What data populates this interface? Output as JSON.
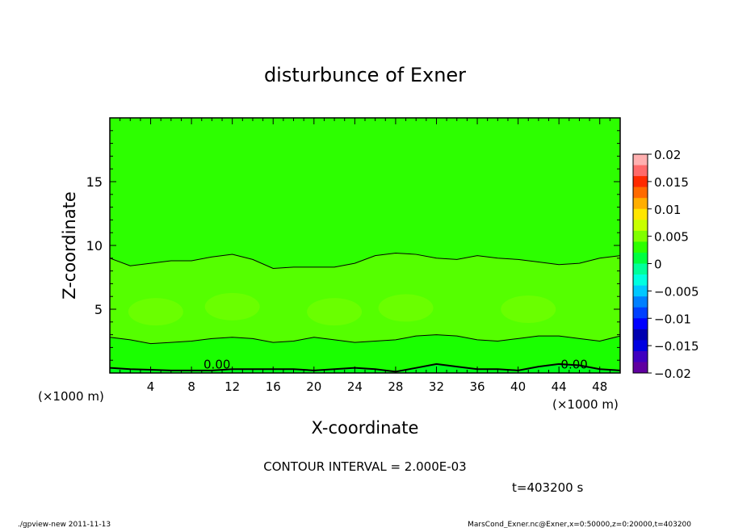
{
  "chart_data": {
    "type": "heatmap",
    "title": "disturbunce of Exner",
    "xlabel": "X-coordinate",
    "ylabel": "Z-coordinate",
    "x_unit_left": "(×1000 m)",
    "x_unit_right": "(×1000 m)",
    "xlim": [
      0,
      50
    ],
    "ylim": [
      0,
      20
    ],
    "xticks": [
      4,
      8,
      12,
      16,
      20,
      24,
      28,
      32,
      36,
      40,
      44,
      48
    ],
    "xtick_labels": [
      "4",
      "8",
      "12",
      "16",
      "20",
      "24",
      "28",
      "32",
      "36",
      "40",
      "44",
      "48"
    ],
    "yticks": [
      5,
      10,
      15
    ],
    "ytick_labels": [
      "5",
      "10",
      "15"
    ],
    "contour_interval_text": "CONTOUR INTERVAL = 2.000E-03",
    "time_text": "t=403200 s",
    "contour_labels": [
      {
        "text": "0.00",
        "x": 10.5,
        "z": 0.35
      },
      {
        "text": "0.00",
        "x": 45.5,
        "z": 0.35
      }
    ],
    "contours": [
      {
        "level": 0.0,
        "x": [
          0,
          2,
          4,
          6,
          8,
          10,
          12,
          14,
          16,
          18,
          20,
          22,
          24,
          26,
          28,
          30,
          32,
          34,
          36,
          38,
          40,
          42,
          44,
          46,
          48,
          50
        ],
        "z": [
          0.4,
          0.3,
          0.25,
          0.2,
          0.2,
          0.2,
          0.3,
          0.3,
          0.3,
          0.3,
          0.2,
          0.3,
          0.4,
          0.3,
          0.1,
          0.4,
          0.7,
          0.5,
          0.3,
          0.3,
          0.2,
          0.5,
          0.7,
          0.6,
          0.3,
          0.2
        ]
      },
      {
        "level": 0.002,
        "x": [
          0,
          2,
          4,
          6,
          8,
          10,
          12,
          14,
          16,
          18,
          20,
          22,
          24,
          26,
          28,
          30,
          32,
          34,
          36,
          38,
          40,
          42,
          44,
          46,
          48,
          50
        ],
        "z": [
          2.8,
          2.6,
          2.3,
          2.4,
          2.5,
          2.7,
          2.8,
          2.7,
          2.4,
          2.5,
          2.8,
          2.6,
          2.4,
          2.5,
          2.6,
          2.9,
          3.0,
          2.9,
          2.6,
          2.5,
          2.7,
          2.9,
          2.9,
          2.7,
          2.5,
          2.9
        ]
      },
      {
        "level": 0.002,
        "x": [
          0,
          2,
          4,
          6,
          8,
          10,
          12,
          14,
          16,
          18,
          20,
          22,
          24,
          26,
          28,
          30,
          32,
          34,
          36,
          38,
          40,
          42,
          44,
          46,
          48,
          50
        ],
        "z": [
          9.0,
          8.4,
          8.6,
          8.8,
          8.8,
          9.1,
          9.3,
          8.9,
          8.2,
          8.3,
          8.3,
          8.3,
          8.6,
          9.2,
          9.4,
          9.3,
          9.0,
          8.9,
          9.2,
          9.0,
          8.9,
          8.7,
          8.5,
          8.6,
          9.0,
          9.2
        ]
      }
    ],
    "warm_blobs": [
      {
        "x": 4.5,
        "z": 4.8
      },
      {
        "x": 12,
        "z": 5.2
      },
      {
        "x": 22,
        "z": 4.8
      },
      {
        "x": 29,
        "z": 5.1
      },
      {
        "x": 41,
        "z": 5.0
      }
    ],
    "colorbar": {
      "ticks": [
        0.02,
        0.015,
        0.01,
        0.005,
        0,
        -0.005,
        -0.01,
        -0.015,
        -0.02
      ],
      "tick_labels": [
        "0.02",
        "0.015",
        "0.01",
        "0.005",
        "0",
        "−0.005",
        "−0.01",
        "−0.015",
        "−0.02"
      ],
      "colors_top_to_bottom": [
        "#ffb0b0",
        "#ff6a6a",
        "#ff2a00",
        "#ff6a00",
        "#ffae00",
        "#ffe600",
        "#c8ff00",
        "#80ff00",
        "#2dff00",
        "#00ff40",
        "#00ff9a",
        "#00ffe0",
        "#00c8ff",
        "#0080ff",
        "#0040ff",
        "#0000ff",
        "#0000b0",
        "#0000e0",
        "#4000c0",
        "#6000a0"
      ]
    },
    "fill_colors": {
      "base": "#2dff00",
      "mid": "#55ff00",
      "blob": "#6aff00",
      "low1": "#1aff00",
      "low2": "#00ff1a"
    }
  },
  "footer": {
    "left": "./gpview-new   2011-11-13",
    "right": "MarsCond_Exner.nc@Exner,x=0:50000,z=0:20000,t=403200"
  }
}
